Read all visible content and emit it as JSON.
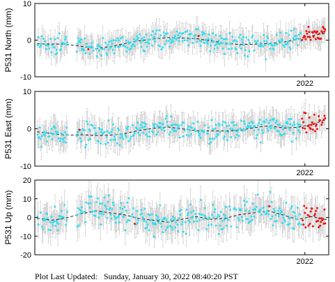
{
  "chart_data": [
    {
      "type": "scatter",
      "ylabel": "P531 North (mm)",
      "ylim": [
        -10,
        10
      ],
      "yticks": [
        -10,
        0,
        10
      ],
      "xtick_label": "2022",
      "colors": {
        "observed": "#33ddee",
        "recent": "#ee1111",
        "errorbar": "#c8c8c8",
        "model": "#000000"
      },
      "model_anchor_days": [
        0,
        38,
        62,
        82,
        100,
        120,
        140,
        160,
        180,
        200,
        220,
        240,
        260,
        280,
        300,
        320,
        342,
        360,
        380,
        395
      ],
      "model_anchor_values": [
        -1.0,
        -1.1,
        -1.7,
        -2.3,
        -1.8,
        -1.0,
        -0.2,
        0.3,
        0.7,
        0.6,
        0.4,
        -0.2,
        -0.8,
        -1.2,
        -1.1,
        -0.9,
        -0.5,
        0.3,
        1.2,
        1.8
      ],
      "observed_gaps_days": [
        [
          42,
          55
        ]
      ],
      "observed_noise_mm": 1.4,
      "recent_start_day": 366,
      "errorbar_mm": 2.8
    },
    {
      "type": "scatter",
      "ylabel": "P531 East (mm)",
      "ylim": [
        -10,
        10
      ],
      "yticks": [
        -10,
        0,
        10
      ],
      "xtick_label": "2022",
      "colors": {
        "observed": "#33ddee",
        "recent": "#ee1111",
        "errorbar": "#c8c8c8",
        "model": "#000000"
      },
      "model_anchor_days": [
        0,
        38,
        62,
        82,
        100,
        120,
        140,
        160,
        180,
        200,
        220,
        240,
        260,
        280,
        300,
        320,
        342,
        360,
        380,
        395
      ],
      "model_anchor_values": [
        -0.8,
        -1.7,
        -1.6,
        -1.8,
        -1.7,
        -1.3,
        -0.5,
        0.1,
        0.5,
        0.0,
        -0.5,
        -0.6,
        -0.6,
        -0.4,
        0.3,
        0.8,
        0.2,
        0.4,
        1.2,
        2.2
      ],
      "observed_gaps_days": [
        [
          42,
          55
        ]
      ],
      "observed_noise_mm": 1.5,
      "recent_start_day": 366,
      "errorbar_mm": 3.0
    },
    {
      "type": "scatter",
      "ylabel": "P531 Up (mm)",
      "ylim": [
        -20,
        20
      ],
      "yticks": [
        -20,
        -10,
        0,
        10,
        20
      ],
      "xtick_label": "2022",
      "colors": {
        "observed": "#33ddee",
        "recent": "#ee1111",
        "errorbar": "#c8c8c8",
        "model": "#000000"
      },
      "model_anchor_days": [
        0,
        20,
        38,
        62,
        82,
        100,
        120,
        140,
        160,
        180,
        200,
        220,
        240,
        260,
        280,
        300,
        320,
        342,
        360,
        380,
        395
      ],
      "model_anchor_values": [
        -0.5,
        -1.5,
        -0.5,
        2.0,
        3.5,
        2.5,
        1.5,
        -0.5,
        -1.5,
        -2.5,
        -1.0,
        0.5,
        -1.0,
        -0.5,
        1.5,
        2.5,
        3.5,
        1.0,
        -1.0,
        0.5,
        -1.0
      ],
      "observed_gaps_days": [
        [
          42,
          55
        ]
      ],
      "observed_noise_mm": 3.8,
      "recent_start_day": 366,
      "errorbar_mm": 7.0
    }
  ],
  "x_range_days": [
    0,
    400
  ],
  "tick_2022_day": 370,
  "footer": "Plot Last Updated:   Sunday, January 30, 2022 08:40:20 PST"
}
